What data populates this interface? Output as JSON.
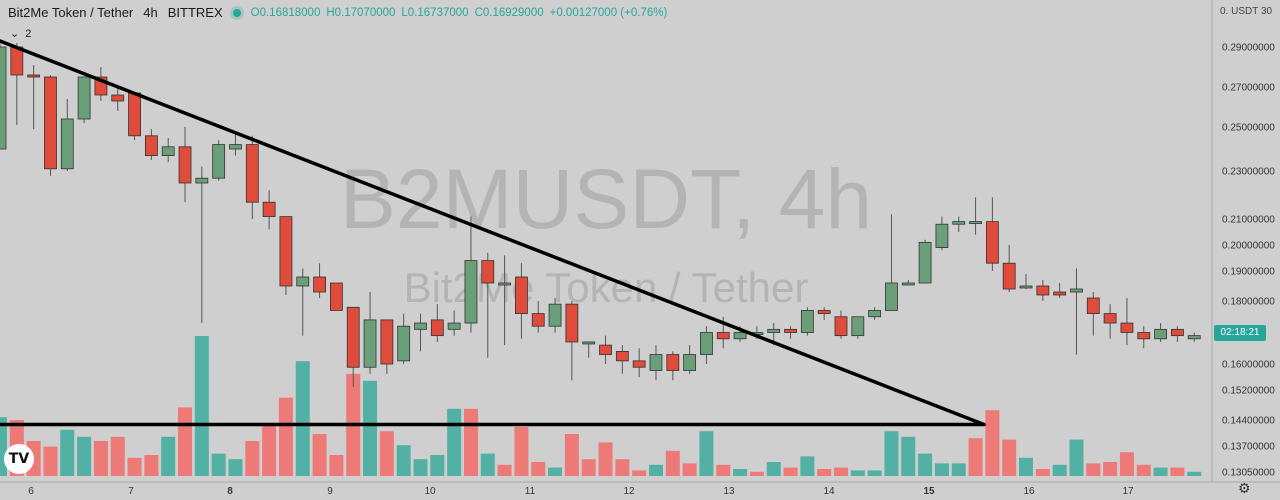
{
  "header": {
    "symbol": "Bit2Me Token / Tether",
    "interval": "4h",
    "exchange": "BITTREX",
    "open": "O0.16818000",
    "high": "H0.17070000",
    "low": "L0.16737000",
    "close": "C0.16929000",
    "change": "+0.00127000 (+0.76%)",
    "indicator_count": "2"
  },
  "axis": {
    "price_axis_title": "0.  USDT 30",
    "countdown": "02:18:21"
  },
  "watermark": {
    "title": "B2MUSDT, 4h",
    "subtitle": "Bit2Me Token / Tether"
  },
  "logo": "TV",
  "colors": {
    "up": "#6a9f79",
    "down": "#df4c3b",
    "vol_up": "#52b0a4",
    "vol_down": "#ee7a78",
    "accent": "#26a69a"
  },
  "chart_data": {
    "type": "candlestick",
    "x_ticks": [
      "6",
      "7",
      "8",
      "9",
      "10",
      "11",
      "12",
      "13",
      "14",
      "15",
      "16",
      "17"
    ],
    "y_ticks": [
      "0.29000000",
      "0.27000000",
      "0.25000000",
      "0.23000000",
      "0.21000000",
      "0.20000000",
      "0.19000000",
      "0.18000000",
      "0.16000000",
      "0.15200000",
      "0.14400000",
      "0.13700000",
      "0.13050000"
    ],
    "y_tick_values": [
      0.29,
      0.27,
      0.25,
      0.23,
      0.21,
      0.2,
      0.19,
      0.18,
      0.16,
      0.152,
      0.144,
      0.137,
      0.1305
    ],
    "x_start": 0,
    "x_step": 1,
    "candles": [
      {
        "o": 0.24,
        "h": 0.292,
        "l": 0.24,
        "c": 0.29
      },
      {
        "o": 0.29,
        "h": 0.292,
        "l": 0.251,
        "c": 0.276
      },
      {
        "o": 0.276,
        "h": 0.281,
        "l": 0.249,
        "c": 0.275
      },
      {
        "o": 0.275,
        "h": 0.276,
        "l": 0.228,
        "c": 0.231
      },
      {
        "o": 0.231,
        "h": 0.264,
        "l": 0.23,
        "c": 0.254
      },
      {
        "o": 0.254,
        "h": 0.275,
        "l": 0.252,
        "c": 0.275
      },
      {
        "o": 0.275,
        "h": 0.28,
        "l": 0.263,
        "c": 0.266
      },
      {
        "o": 0.266,
        "h": 0.27,
        "l": 0.258,
        "c": 0.263
      },
      {
        "o": 0.267,
        "h": 0.267,
        "l": 0.244,
        "c": 0.246
      },
      {
        "o": 0.246,
        "h": 0.249,
        "l": 0.235,
        "c": 0.237
      },
      {
        "o": 0.237,
        "h": 0.245,
        "l": 0.234,
        "c": 0.241
      },
      {
        "o": 0.241,
        "h": 0.25,
        "l": 0.217,
        "c": 0.225
      },
      {
        "o": 0.225,
        "h": 0.232,
        "l": 0.173,
        "c": 0.227
      },
      {
        "o": 0.227,
        "h": 0.244,
        "l": 0.226,
        "c": 0.242
      },
      {
        "o": 0.24,
        "h": 0.248,
        "l": 0.237,
        "c": 0.242
      },
      {
        "o": 0.242,
        "h": 0.246,
        "l": 0.21,
        "c": 0.217
      },
      {
        "o": 0.217,
        "h": 0.222,
        "l": 0.206,
        "c": 0.211
      },
      {
        "o": 0.211,
        "h": 0.211,
        "l": 0.182,
        "c": 0.185
      },
      {
        "o": 0.185,
        "h": 0.191,
        "l": 0.169,
        "c": 0.188
      },
      {
        "o": 0.188,
        "h": 0.193,
        "l": 0.181,
        "c": 0.183
      },
      {
        "o": 0.186,
        "h": 0.186,
        "l": 0.177,
        "c": 0.177
      },
      {
        "o": 0.178,
        "h": 0.178,
        "l": 0.153,
        "c": 0.159
      },
      {
        "o": 0.159,
        "h": 0.183,
        "l": 0.157,
        "c": 0.174
      },
      {
        "o": 0.174,
        "h": 0.174,
        "l": 0.157,
        "c": 0.16
      },
      {
        "o": 0.161,
        "h": 0.176,
        "l": 0.16,
        "c": 0.172
      },
      {
        "o": 0.171,
        "h": 0.176,
        "l": 0.164,
        "c": 0.173
      },
      {
        "o": 0.174,
        "h": 0.179,
        "l": 0.167,
        "c": 0.169
      },
      {
        "o": 0.171,
        "h": 0.177,
        "l": 0.169,
        "c": 0.173
      },
      {
        "o": 0.173,
        "h": 0.211,
        "l": 0.17,
        "c": 0.194
      },
      {
        "o": 0.194,
        "h": 0.197,
        "l": 0.162,
        "c": 0.186
      },
      {
        "o": 0.186,
        "h": 0.196,
        "l": 0.166,
        "c": 0.186
      },
      {
        "o": 0.188,
        "h": 0.193,
        "l": 0.168,
        "c": 0.176
      },
      {
        "o": 0.176,
        "h": 0.18,
        "l": 0.17,
        "c": 0.172
      },
      {
        "o": 0.172,
        "h": 0.181,
        "l": 0.17,
        "c": 0.179
      },
      {
        "o": 0.179,
        "h": 0.18,
        "l": 0.155,
        "c": 0.167
      },
      {
        "o": 0.167,
        "h": 0.167,
        "l": 0.162,
        "c": 0.167
      },
      {
        "o": 0.166,
        "h": 0.169,
        "l": 0.16,
        "c": 0.163
      },
      {
        "o": 0.164,
        "h": 0.166,
        "l": 0.157,
        "c": 0.161
      },
      {
        "o": 0.161,
        "h": 0.165,
        "l": 0.156,
        "c": 0.159
      },
      {
        "o": 0.158,
        "h": 0.166,
        "l": 0.155,
        "c": 0.163
      },
      {
        "o": 0.163,
        "h": 0.164,
        "l": 0.155,
        "c": 0.158
      },
      {
        "o": 0.158,
        "h": 0.166,
        "l": 0.157,
        "c": 0.163
      },
      {
        "o": 0.163,
        "h": 0.172,
        "l": 0.16,
        "c": 0.17
      },
      {
        "o": 0.17,
        "h": 0.175,
        "l": 0.165,
        "c": 0.168
      },
      {
        "o": 0.168,
        "h": 0.172,
        "l": 0.167,
        "c": 0.17
      },
      {
        "o": 0.17,
        "h": 0.172,
        "l": 0.168,
        "c": 0.17
      },
      {
        "o": 0.17,
        "h": 0.173,
        "l": 0.166,
        "c": 0.171
      },
      {
        "o": 0.171,
        "h": 0.172,
        "l": 0.168,
        "c": 0.17
      },
      {
        "o": 0.17,
        "h": 0.178,
        "l": 0.169,
        "c": 0.177
      },
      {
        "o": 0.177,
        "h": 0.178,
        "l": 0.174,
        "c": 0.176
      },
      {
        "o": 0.175,
        "h": 0.177,
        "l": 0.168,
        "c": 0.169
      },
      {
        "o": 0.169,
        "h": 0.175,
        "l": 0.168,
        "c": 0.175
      },
      {
        "o": 0.175,
        "h": 0.178,
        "l": 0.174,
        "c": 0.177
      },
      {
        "o": 0.177,
        "h": 0.212,
        "l": 0.177,
        "c": 0.186
      },
      {
        "o": 0.186,
        "h": 0.187,
        "l": 0.186,
        "c": 0.186
      },
      {
        "o": 0.186,
        "h": 0.202,
        "l": 0.186,
        "c": 0.201
      },
      {
        "o": 0.199,
        "h": 0.211,
        "l": 0.198,
        "c": 0.208
      },
      {
        "o": 0.208,
        "h": 0.211,
        "l": 0.205,
        "c": 0.209
      },
      {
        "o": 0.209,
        "h": 0.219,
        "l": 0.204,
        "c": 0.209
      },
      {
        "o": 0.209,
        "h": 0.219,
        "l": 0.19,
        "c": 0.193
      },
      {
        "o": 0.193,
        "h": 0.2,
        "l": 0.183,
        "c": 0.184
      },
      {
        "o": 0.185,
        "h": 0.189,
        "l": 0.184,
        "c": 0.185
      },
      {
        "o": 0.185,
        "h": 0.187,
        "l": 0.18,
        "c": 0.182
      },
      {
        "o": 0.183,
        "h": 0.186,
        "l": 0.181,
        "c": 0.182
      },
      {
        "o": 0.183,
        "h": 0.191,
        "l": 0.163,
        "c": 0.184
      },
      {
        "o": 0.181,
        "h": 0.183,
        "l": 0.169,
        "c": 0.176
      },
      {
        "o": 0.176,
        "h": 0.179,
        "l": 0.168,
        "c": 0.173
      },
      {
        "o": 0.173,
        "h": 0.181,
        "l": 0.166,
        "c": 0.17
      },
      {
        "o": 0.17,
        "h": 0.172,
        "l": 0.165,
        "c": 0.168
      },
      {
        "o": 0.168,
        "h": 0.173,
        "l": 0.167,
        "c": 0.171
      },
      {
        "o": 0.171,
        "h": 0.172,
        "l": 0.167,
        "c": 0.169
      },
      {
        "o": 0.168,
        "h": 0.17,
        "l": 0.167,
        "c": 0.169
      }
    ],
    "volumes": [
      {
        "v": 0.42,
        "up": true
      },
      {
        "v": 0.4,
        "up": false
      },
      {
        "v": 0.25,
        "up": false
      },
      {
        "v": 0.21,
        "up": false
      },
      {
        "v": 0.33,
        "up": true
      },
      {
        "v": 0.28,
        "up": true
      },
      {
        "v": 0.25,
        "up": false
      },
      {
        "v": 0.28,
        "up": false
      },
      {
        "v": 0.13,
        "up": false
      },
      {
        "v": 0.15,
        "up": false
      },
      {
        "v": 0.28,
        "up": true
      },
      {
        "v": 0.49,
        "up": false
      },
      {
        "v": 1.0,
        "up": true
      },
      {
        "v": 0.16,
        "up": true
      },
      {
        "v": 0.12,
        "up": true
      },
      {
        "v": 0.25,
        "up": false
      },
      {
        "v": 0.38,
        "up": false
      },
      {
        "v": 0.56,
        "up": false
      },
      {
        "v": 0.82,
        "up": true
      },
      {
        "v": 0.3,
        "up": false
      },
      {
        "v": 0.15,
        "up": false
      },
      {
        "v": 0.73,
        "up": false
      },
      {
        "v": 0.68,
        "up": true
      },
      {
        "v": 0.32,
        "up": false
      },
      {
        "v": 0.22,
        "up": true
      },
      {
        "v": 0.12,
        "up": true
      },
      {
        "v": 0.15,
        "up": true
      },
      {
        "v": 0.48,
        "up": true
      },
      {
        "v": 0.48,
        "up": false
      },
      {
        "v": 0.16,
        "up": true
      },
      {
        "v": 0.08,
        "up": false
      },
      {
        "v": 0.35,
        "up": false
      },
      {
        "v": 0.1,
        "up": false
      },
      {
        "v": 0.06,
        "up": true
      },
      {
        "v": 0.3,
        "up": false
      },
      {
        "v": 0.12,
        "up": false
      },
      {
        "v": 0.24,
        "up": false
      },
      {
        "v": 0.12,
        "up": false
      },
      {
        "v": 0.04,
        "up": false
      },
      {
        "v": 0.08,
        "up": true
      },
      {
        "v": 0.18,
        "up": false
      },
      {
        "v": 0.09,
        "up": false
      },
      {
        "v": 0.32,
        "up": true
      },
      {
        "v": 0.08,
        "up": false
      },
      {
        "v": 0.05,
        "up": true
      },
      {
        "v": 0.03,
        "up": false
      },
      {
        "v": 0.1,
        "up": true
      },
      {
        "v": 0.06,
        "up": false
      },
      {
        "v": 0.14,
        "up": true
      },
      {
        "v": 0.05,
        "up": false
      },
      {
        "v": 0.06,
        "up": false
      },
      {
        "v": 0.04,
        "up": true
      },
      {
        "v": 0.04,
        "up": true
      },
      {
        "v": 0.32,
        "up": true
      },
      {
        "v": 0.28,
        "up": true
      },
      {
        "v": 0.16,
        "up": true
      },
      {
        "v": 0.09,
        "up": true
      },
      {
        "v": 0.09,
        "up": true
      },
      {
        "v": 0.27,
        "up": false
      },
      {
        "v": 0.47,
        "up": false
      },
      {
        "v": 0.26,
        "up": false
      },
      {
        "v": 0.13,
        "up": true
      },
      {
        "v": 0.05,
        "up": false
      },
      {
        "v": 0.08,
        "up": true
      },
      {
        "v": 0.26,
        "up": true
      },
      {
        "v": 0.09,
        "up": false
      },
      {
        "v": 0.1,
        "up": false
      },
      {
        "v": 0.17,
        "up": false
      },
      {
        "v": 0.08,
        "up": false
      },
      {
        "v": 0.06,
        "up": true
      },
      {
        "v": 0.06,
        "up": false
      },
      {
        "v": 0.03,
        "up": true
      }
    ],
    "trendlines": [
      {
        "x1": 0,
        "y1": 0.293,
        "x2": 58.5,
        "y2": 0.1428
      },
      {
        "x1": -1,
        "y1": 0.1428,
        "x2": 58.5,
        "y2": 0.1428
      }
    ]
  }
}
